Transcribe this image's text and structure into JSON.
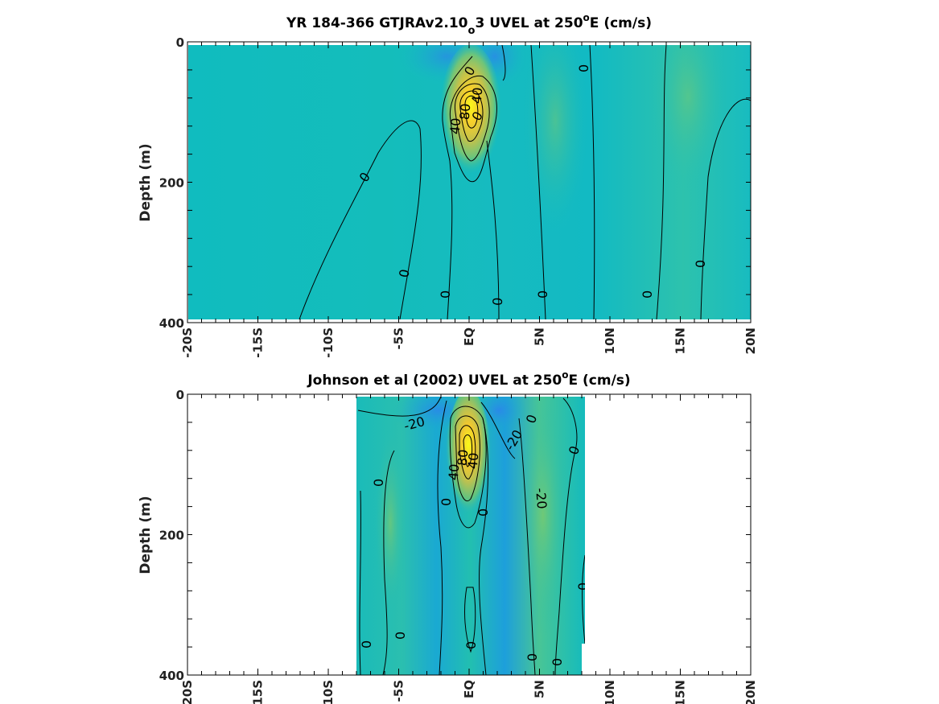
{
  "chart_data": [
    {
      "type": "heatmap",
      "title_main": "YR 184-366 GTJRAv2.10",
      "title_sub": "o",
      "title_rest": "3 UVEL at 250",
      "title_sup": "o",
      "title_end": "E (cm/s)",
      "ylabel": "Depth (m)",
      "xlim": [
        -20,
        20
      ],
      "ylim": [
        0,
        400
      ],
      "x_ticks": [
        "-20S",
        "-15S",
        "-10S",
        "-5S",
        "EQ",
        "5N",
        "10N",
        "15N",
        "20N"
      ],
      "y_ticks": [
        "0",
        "200",
        "400"
      ],
      "data_xrange": [
        -20,
        20
      ],
      "core": {
        "lat": 0,
        "depth": 110,
        "value": 100
      },
      "contour_labels": [
        "0",
        "0",
        "0",
        "0",
        "0",
        "0",
        "0",
        "0",
        "0",
        "0",
        "0",
        "40",
        "80",
        "40"
      ]
    },
    {
      "type": "heatmap",
      "title_main": "Johnson et al (2002) UVEL at 250",
      "title_sup": "o",
      "title_end": "E (cm/s)",
      "ylabel": "Depth (m)",
      "xlim": [
        -20,
        20
      ],
      "ylim": [
        0,
        400
      ],
      "x_ticks": [
        "-20S",
        "-15S",
        "-10S",
        "-5S",
        "EQ",
        "5N",
        "10N",
        "15N",
        "20N"
      ],
      "y_ticks": [
        "0",
        "200",
        "400"
      ],
      "data_xrange": [
        -8,
        8
      ],
      "core": {
        "lat": 0,
        "depth": 80,
        "value": 100
      },
      "contour_labels": [
        "-20",
        "-20",
        "-20",
        "0",
        "0",
        "0",
        "0",
        "0",
        "0",
        "0",
        "0",
        "0",
        "0",
        "0",
        "0",
        "0",
        "40",
        "80",
        "40"
      ]
    }
  ]
}
